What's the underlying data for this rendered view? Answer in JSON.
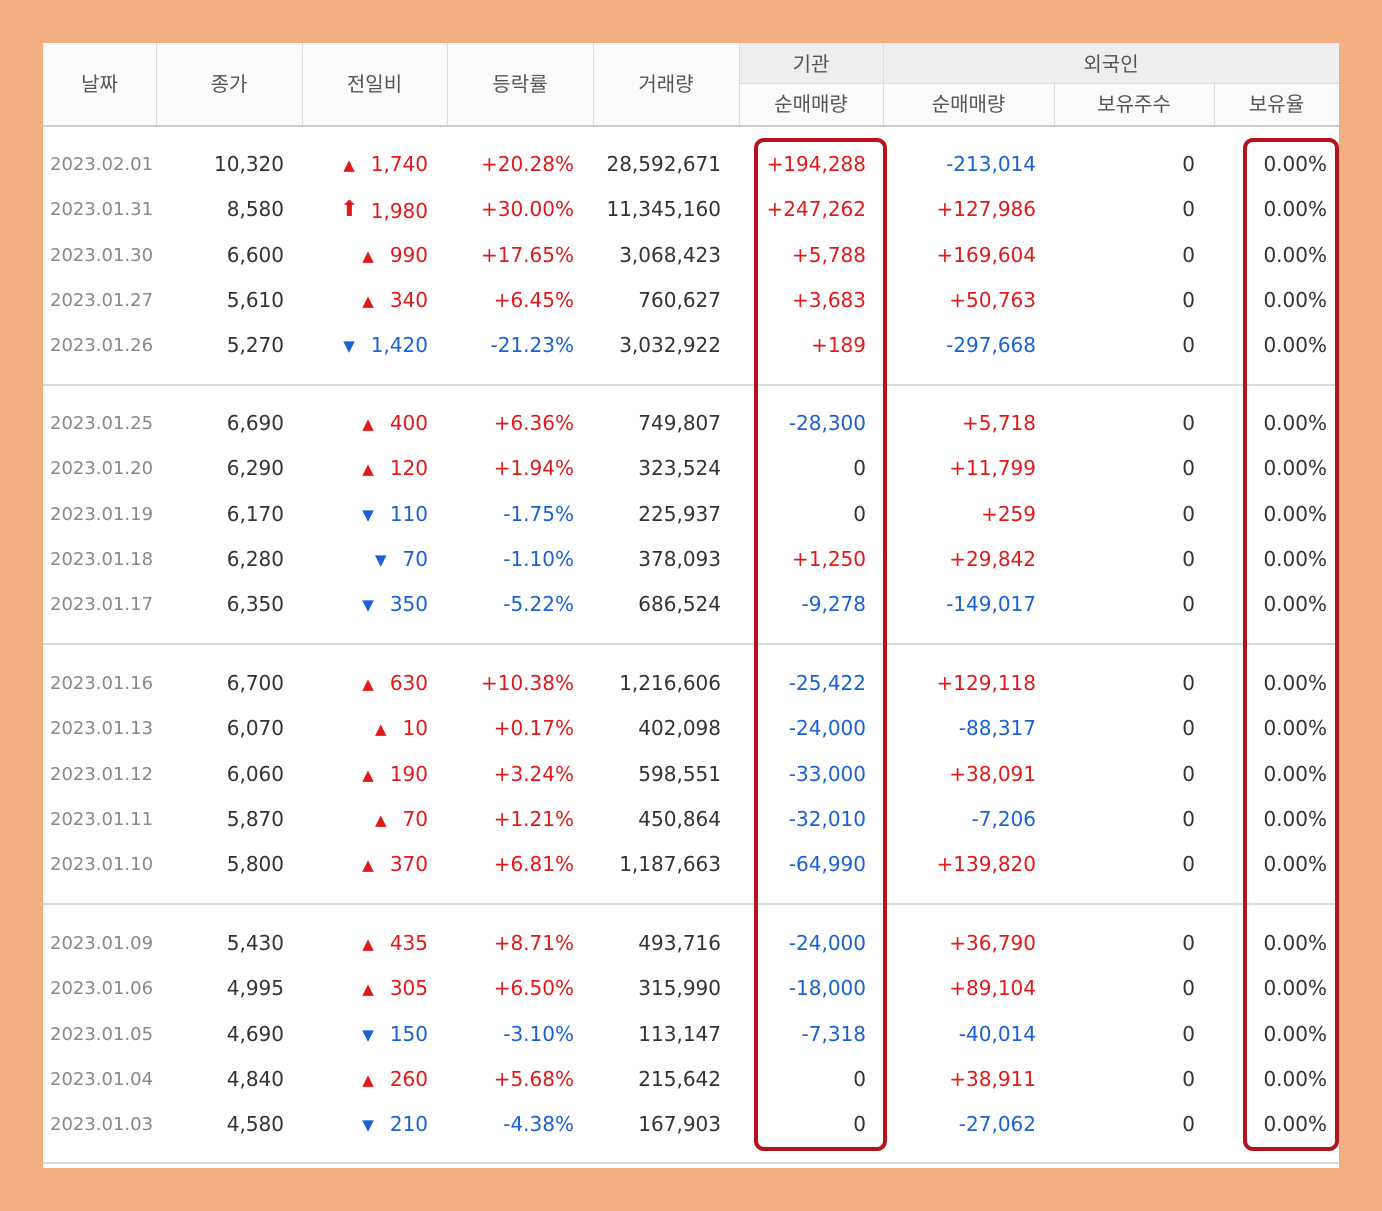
{
  "headers": {
    "date": "날짜",
    "close": "종가",
    "diff": "전일비",
    "rate": "등락률",
    "volume": "거래량",
    "inst_group": "기관",
    "inst_net": "순매매량",
    "foreign_group": "외국인",
    "foreign_net": "순매매량",
    "foreign_holding": "보유주수",
    "foreign_ratio": "보유율"
  },
  "groups": [
    [
      {
        "date": "2023.02.01",
        "close": "10,320",
        "dir": "up",
        "diff": "1,740",
        "rate": "+20.28%",
        "volume": "28,592,671",
        "inst": "+194,288",
        "fnet": "-213,014",
        "fhold": "0",
        "fratio": "0.00%"
      },
      {
        "date": "2023.01.31",
        "close": "8,580",
        "dir": "upper",
        "diff": "1,980",
        "rate": "+30.00%",
        "volume": "11,345,160",
        "inst": "+247,262",
        "fnet": "+127,986",
        "fhold": "0",
        "fratio": "0.00%"
      },
      {
        "date": "2023.01.30",
        "close": "6,600",
        "dir": "up",
        "diff": "990",
        "rate": "+17.65%",
        "volume": "3,068,423",
        "inst": "+5,788",
        "fnet": "+169,604",
        "fhold": "0",
        "fratio": "0.00%"
      },
      {
        "date": "2023.01.27",
        "close": "5,610",
        "dir": "up",
        "diff": "340",
        "rate": "+6.45%",
        "volume": "760,627",
        "inst": "+3,683",
        "fnet": "+50,763",
        "fhold": "0",
        "fratio": "0.00%"
      },
      {
        "date": "2023.01.26",
        "close": "5,270",
        "dir": "down",
        "diff": "1,420",
        "rate": "-21.23%",
        "volume": "3,032,922",
        "inst": "+189",
        "fnet": "-297,668",
        "fhold": "0",
        "fratio": "0.00%"
      }
    ],
    [
      {
        "date": "2023.01.25",
        "close": "6,690",
        "dir": "up",
        "diff": "400",
        "rate": "+6.36%",
        "volume": "749,807",
        "inst": "-28,300",
        "fnet": "+5,718",
        "fhold": "0",
        "fratio": "0.00%"
      },
      {
        "date": "2023.01.20",
        "close": "6,290",
        "dir": "up",
        "diff": "120",
        "rate": "+1.94%",
        "volume": "323,524",
        "inst": "0",
        "fnet": "+11,799",
        "fhold": "0",
        "fratio": "0.00%"
      },
      {
        "date": "2023.01.19",
        "close": "6,170",
        "dir": "down",
        "diff": "110",
        "rate": "-1.75%",
        "volume": "225,937",
        "inst": "0",
        "fnet": "+259",
        "fhold": "0",
        "fratio": "0.00%"
      },
      {
        "date": "2023.01.18",
        "close": "6,280",
        "dir": "down",
        "diff": "70",
        "rate": "-1.10%",
        "volume": "378,093",
        "inst": "+1,250",
        "fnet": "+29,842",
        "fhold": "0",
        "fratio": "0.00%"
      },
      {
        "date": "2023.01.17",
        "close": "6,350",
        "dir": "down",
        "diff": "350",
        "rate": "-5.22%",
        "volume": "686,524",
        "inst": "-9,278",
        "fnet": "-149,017",
        "fhold": "0",
        "fratio": "0.00%"
      }
    ],
    [
      {
        "date": "2023.01.16",
        "close": "6,700",
        "dir": "up",
        "diff": "630",
        "rate": "+10.38%",
        "volume": "1,216,606",
        "inst": "-25,422",
        "fnet": "+129,118",
        "fhold": "0",
        "fratio": "0.00%"
      },
      {
        "date": "2023.01.13",
        "close": "6,070",
        "dir": "up",
        "diff": "10",
        "rate": "+0.17%",
        "volume": "402,098",
        "inst": "-24,000",
        "fnet": "-88,317",
        "fhold": "0",
        "fratio": "0.00%"
      },
      {
        "date": "2023.01.12",
        "close": "6,060",
        "dir": "up",
        "diff": "190",
        "rate": "+3.24%",
        "volume": "598,551",
        "inst": "-33,000",
        "fnet": "+38,091",
        "fhold": "0",
        "fratio": "0.00%"
      },
      {
        "date": "2023.01.11",
        "close": "5,870",
        "dir": "up",
        "diff": "70",
        "rate": "+1.21%",
        "volume": "450,864",
        "inst": "-32,010",
        "fnet": "-7,206",
        "fhold": "0",
        "fratio": "0.00%"
      },
      {
        "date": "2023.01.10",
        "close": "5,800",
        "dir": "up",
        "diff": "370",
        "rate": "+6.81%",
        "volume": "1,187,663",
        "inst": "-64,990",
        "fnet": "+139,820",
        "fhold": "0",
        "fratio": "0.00%"
      }
    ],
    [
      {
        "date": "2023.01.09",
        "close": "5,430",
        "dir": "up",
        "diff": "435",
        "rate": "+8.71%",
        "volume": "493,716",
        "inst": "-24,000",
        "fnet": "+36,790",
        "fhold": "0",
        "fratio": "0.00%"
      },
      {
        "date": "2023.01.06",
        "close": "4,995",
        "dir": "up",
        "diff": "305",
        "rate": "+6.50%",
        "volume": "315,990",
        "inst": "-18,000",
        "fnet": "+89,104",
        "fhold": "0",
        "fratio": "0.00%"
      },
      {
        "date": "2023.01.05",
        "close": "4,690",
        "dir": "down",
        "diff": "150",
        "rate": "-3.10%",
        "volume": "113,147",
        "inst": "-7,318",
        "fnet": "-40,014",
        "fhold": "0",
        "fratio": "0.00%"
      },
      {
        "date": "2023.01.04",
        "close": "4,840",
        "dir": "up",
        "diff": "260",
        "rate": "+5.68%",
        "volume": "215,642",
        "inst": "0",
        "fnet": "+38,911",
        "fhold": "0",
        "fratio": "0.00%"
      },
      {
        "date": "2023.01.03",
        "close": "4,580",
        "dir": "down",
        "diff": "210",
        "rate": "-4.38%",
        "volume": "167,903",
        "inst": "0",
        "fnet": "-27,062",
        "fhold": "0",
        "fratio": "0.00%"
      }
    ]
  ],
  "colors": {
    "up": "#e01a1a",
    "down": "#1a61d6",
    "highlight": "#b4121d",
    "frame": "#f3ae82"
  }
}
